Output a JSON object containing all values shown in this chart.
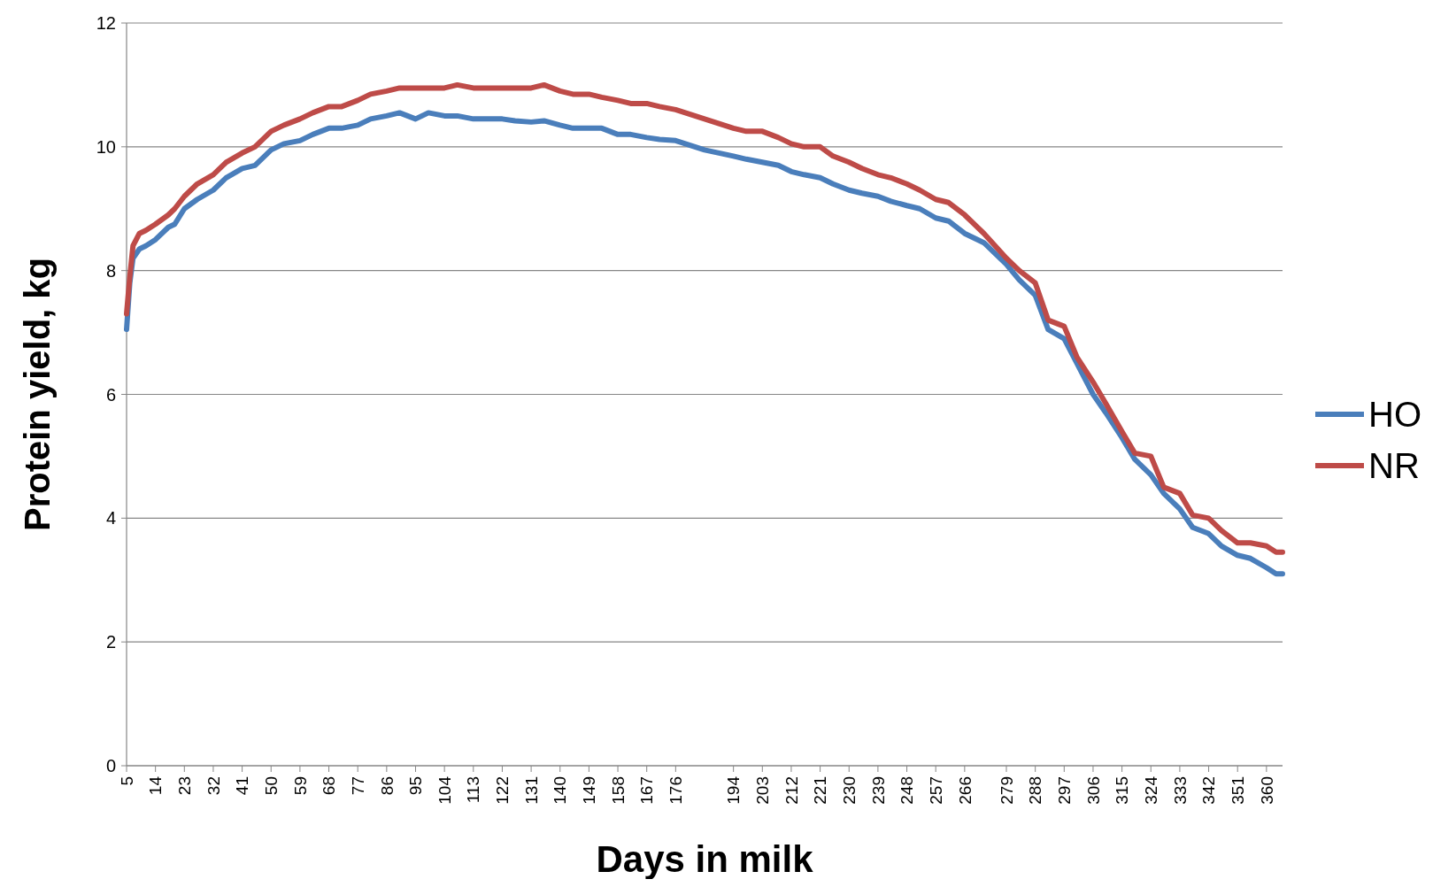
{
  "chart_data": {
    "type": "line",
    "xlabel": "Days in milk",
    "ylabel": "Protein yield, kg",
    "x": [
      5,
      6,
      7,
      9,
      11,
      14,
      18,
      20,
      23,
      27,
      32,
      36,
      41,
      45,
      50,
      54,
      59,
      63,
      68,
      72,
      77,
      81,
      86,
      90,
      95,
      99,
      104,
      108,
      113,
      117,
      122,
      126,
      131,
      135,
      140,
      144,
      149,
      153,
      158,
      162,
      167,
      171,
      176,
      185,
      194,
      198,
      203,
      208,
      212,
      216,
      221,
      225,
      230,
      234,
      239,
      243,
      248,
      252,
      257,
      261,
      266,
      272,
      279,
      283,
      288,
      292,
      297,
      301,
      306,
      310,
      315,
      319,
      324,
      328,
      333,
      337,
      342,
      346,
      351,
      355,
      360,
      363,
      365
    ],
    "series": [
      {
        "name": "HO",
        "color": "#4a7ebb",
        "values": [
          7.05,
          7.8,
          8.2,
          8.35,
          8.4,
          8.5,
          8.7,
          8.75,
          9.0,
          9.15,
          9.3,
          9.5,
          9.65,
          9.7,
          9.95,
          10.05,
          10.1,
          10.2,
          10.3,
          10.3,
          10.35,
          10.45,
          10.5,
          10.55,
          10.45,
          10.55,
          10.5,
          10.5,
          10.45,
          10.45,
          10.45,
          10.42,
          10.4,
          10.42,
          10.35,
          10.3,
          10.3,
          10.3,
          10.2,
          10.2,
          10.15,
          10.12,
          10.1,
          9.95,
          9.85,
          9.8,
          9.75,
          9.7,
          9.6,
          9.55,
          9.5,
          9.4,
          9.3,
          9.25,
          9.2,
          9.12,
          9.05,
          9.0,
          8.85,
          8.8,
          8.6,
          8.45,
          8.1,
          7.85,
          7.6,
          7.05,
          6.9,
          6.5,
          6.0,
          5.7,
          5.3,
          4.95,
          4.7,
          4.4,
          4.15,
          3.85,
          3.75,
          3.55,
          3.4,
          3.35,
          3.2,
          3.1,
          3.1
        ]
      },
      {
        "name": "NR",
        "color": "#be4b48",
        "values": [
          7.3,
          7.9,
          8.4,
          8.6,
          8.65,
          8.75,
          8.9,
          9.0,
          9.2,
          9.4,
          9.55,
          9.75,
          9.9,
          10.0,
          10.25,
          10.35,
          10.45,
          10.55,
          10.65,
          10.65,
          10.75,
          10.85,
          10.9,
          10.95,
          10.95,
          10.95,
          10.95,
          11.0,
          10.95,
          10.95,
          10.95,
          10.95,
          10.95,
          11.0,
          10.9,
          10.85,
          10.85,
          10.8,
          10.75,
          10.7,
          10.7,
          10.65,
          10.6,
          10.45,
          10.3,
          10.25,
          10.25,
          10.15,
          10.05,
          10.0,
          10.0,
          9.85,
          9.75,
          9.65,
          9.55,
          9.5,
          9.4,
          9.3,
          9.15,
          9.1,
          8.9,
          8.6,
          8.2,
          8.0,
          7.8,
          7.2,
          7.1,
          6.6,
          6.2,
          5.85,
          5.4,
          5.05,
          5.0,
          4.5,
          4.4,
          4.05,
          4.0,
          3.8,
          3.6,
          3.6,
          3.55,
          3.45,
          3.45
        ]
      }
    ],
    "xlim": [
      5,
      365
    ],
    "xticks": [
      5,
      14,
      23,
      32,
      41,
      50,
      59,
      68,
      77,
      86,
      95,
      104,
      113,
      122,
      131,
      140,
      149,
      158,
      167,
      176,
      194,
      203,
      212,
      221,
      230,
      239,
      248,
      257,
      266,
      279,
      288,
      297,
      306,
      315,
      324,
      333,
      342,
      351,
      360
    ],
    "ylim": [
      0,
      12
    ],
    "yticks": [
      0,
      2,
      4,
      6,
      8,
      10,
      12
    ],
    "grid": "y",
    "legend": "right",
    "line_style": "solid",
    "marker": "none"
  }
}
